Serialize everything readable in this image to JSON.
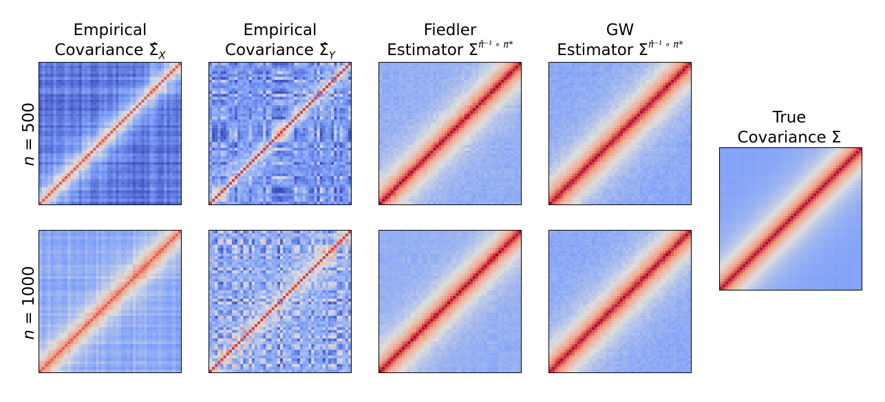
{
  "chart_data": {
    "type": "heatmap",
    "colormap": "coolwarm",
    "matrix_size": 50,
    "columns": [
      {
        "line1": "Empirical",
        "line2_text": "Covariance ",
        "line2_symbol": "Σ̂",
        "line2_sub": "X"
      },
      {
        "line1": "Empirical",
        "line2_text": "Covariance ",
        "line2_symbol": "Σ̂",
        "line2_sub": "Y"
      },
      {
        "line1": "Fiedler",
        "line2_text": "Estimator Σ",
        "line2_sup": "π̂⁻¹ ∘ π*"
      },
      {
        "line1": "GW",
        "line2_text": "Estimator Σ",
        "line2_sup": "π̂⁻¹ ∘ π*"
      }
    ],
    "true_panel": {
      "line1": "True",
      "line2": "Covariance Σ"
    },
    "rows": [
      {
        "label_var": "n",
        "label_rest": " = 500"
      },
      {
        "label_var": "n",
        "label_rest": " = 1000"
      }
    ],
    "panels": [
      {
        "row": 0,
        "col": 0,
        "kind": "empirical_x",
        "noise": 0.55,
        "offdiag_level": 0.12,
        "seed": 3
      },
      {
        "row": 0,
        "col": 1,
        "kind": "empirical_y",
        "noise": 0.65,
        "offdiag_level": 0.22,
        "seed": 7
      },
      {
        "row": 0,
        "col": 2,
        "kind": "fiedler",
        "noise": 0.25,
        "offdiag_level": 0.3,
        "seed": 11
      },
      {
        "row": 0,
        "col": 3,
        "kind": "gw",
        "noise": 0.05,
        "offdiag_level": 0.28,
        "seed": 13
      },
      {
        "row": 1,
        "col": 0,
        "kind": "empirical_x",
        "noise": 0.35,
        "offdiag_level": 0.3,
        "seed": 17
      },
      {
        "row": 1,
        "col": 1,
        "kind": "empirical_y",
        "noise": 0.7,
        "offdiag_level": 0.3,
        "seed": 19
      },
      {
        "row": 1,
        "col": 2,
        "kind": "fiedler",
        "noise": 0.2,
        "offdiag_level": 0.28,
        "seed": 23
      },
      {
        "row": 1,
        "col": 3,
        "kind": "gw",
        "noise": 0.0,
        "offdiag_level": 0.26,
        "seed": 29
      },
      {
        "row": "true",
        "col": 4,
        "kind": "true",
        "noise": 0.0,
        "offdiag_level": 0.26,
        "seed": 31
      }
    ]
  }
}
